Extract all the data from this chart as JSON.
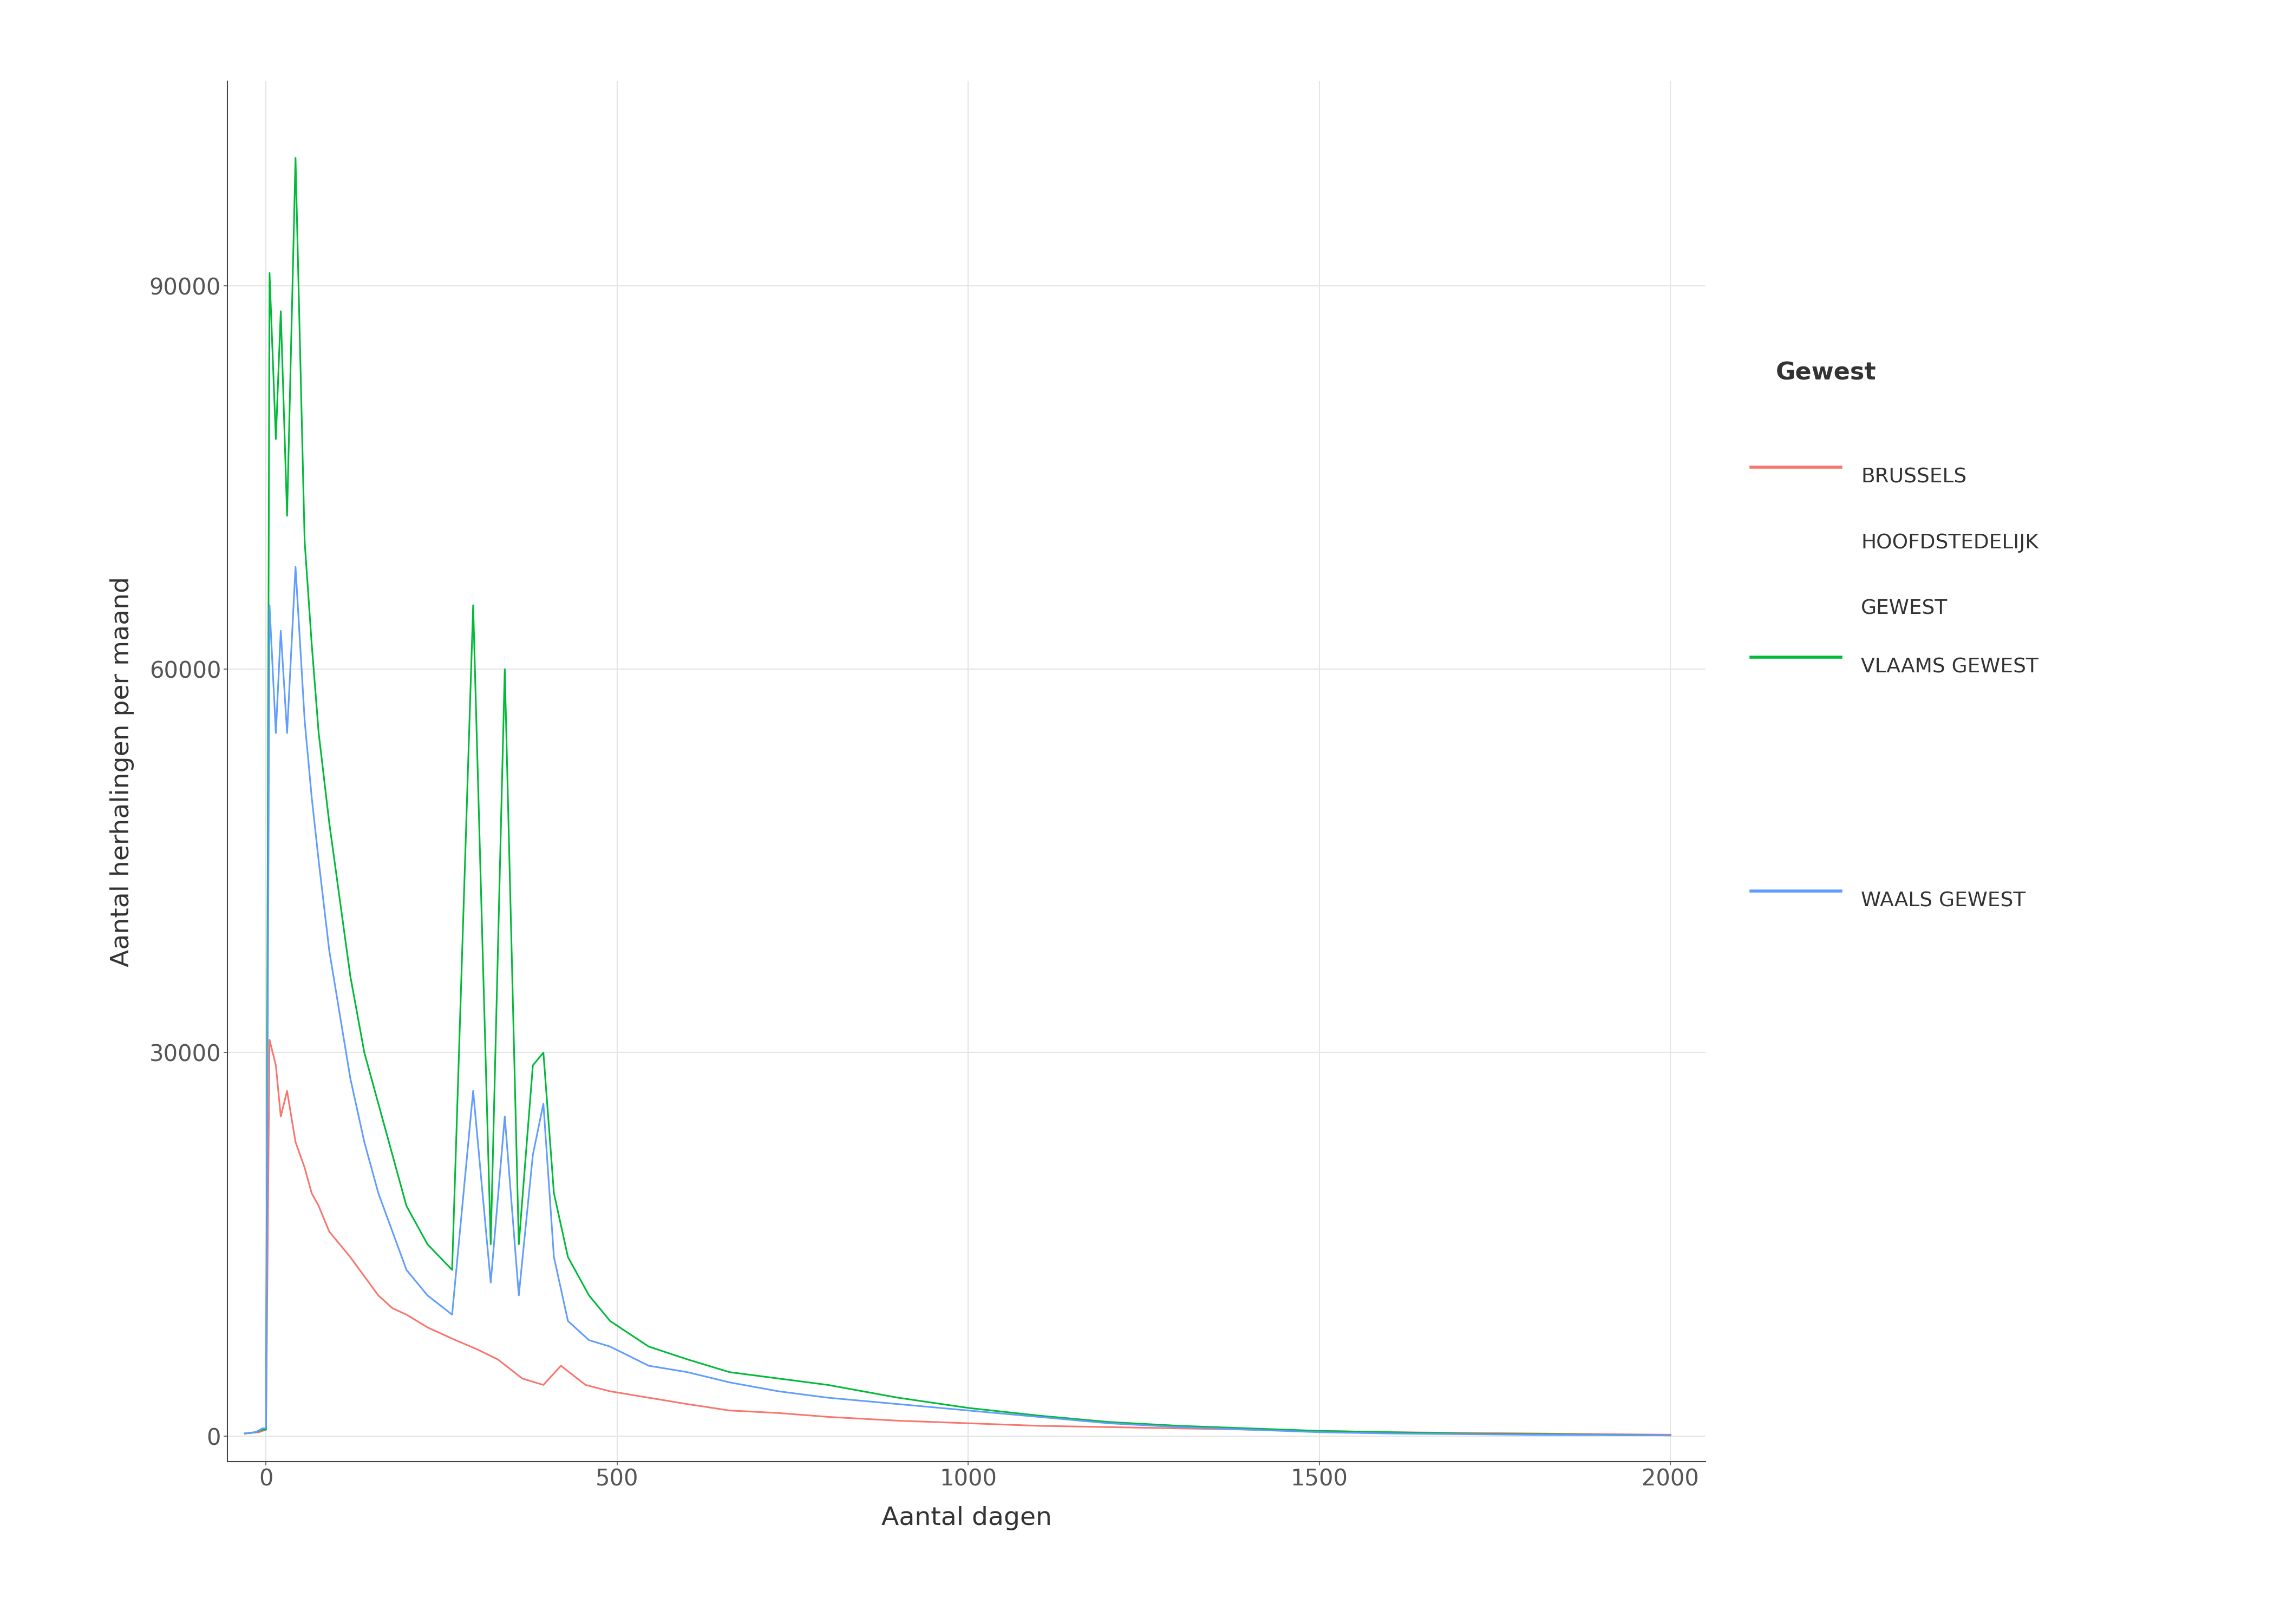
{
  "title": "",
  "xlabel": "Aantal dagen",
  "ylabel": "Aantal herhalingen per maand",
  "legend_title": "Gewest",
  "xlim": [
    -55,
    2050
  ],
  "ylim": [
    -2000,
    106000
  ],
  "xticks": [
    0,
    500,
    1000,
    1500,
    2000
  ],
  "yticks": [
    0,
    30000,
    60000,
    90000
  ],
  "background_color": "#ffffff",
  "panel_background": "#ffffff",
  "grid_color": "#e5e5e5",
  "series": {
    "brussels": {
      "label": "BRUSSELS\nHOOFDSTEDELIJK\nGEWEST",
      "color": "#F8766D",
      "x": [
        -30,
        -10,
        0,
        5,
        14,
        21,
        30,
        42,
        55,
        65,
        75,
        90,
        105,
        120,
        140,
        160,
        180,
        200,
        230,
        270,
        300,
        330,
        365,
        395,
        420,
        455,
        490,
        545,
        600,
        660,
        730,
        800,
        900,
        1000,
        1100,
        1200,
        1300,
        1400,
        1500,
        1600,
        1700,
        1800,
        1900,
        2000
      ],
      "y": [
        200,
        300,
        500,
        31000,
        29000,
        25000,
        27000,
        23000,
        21000,
        19000,
        18000,
        16000,
        15000,
        14000,
        12500,
        11000,
        10000,
        9500,
        8500,
        7500,
        6800,
        6000,
        4500,
        4000,
        5500,
        4000,
        3500,
        3000,
        2500,
        2000,
        1800,
        1500,
        1200,
        1000,
        800,
        700,
        600,
        500,
        400,
        300,
        250,
        200,
        150,
        100
      ]
    },
    "vlaams": {
      "label": "VLAAMS GEWEST",
      "color": "#00BA38",
      "x": [
        -30,
        -15,
        -5,
        0,
        5,
        14,
        21,
        30,
        42,
        55,
        65,
        75,
        90,
        105,
        120,
        140,
        160,
        180,
        200,
        230,
        265,
        295,
        320,
        340,
        360,
        380,
        395,
        410,
        430,
        460,
        490,
        545,
        600,
        660,
        730,
        800,
        900,
        1000,
        1100,
        1200,
        1300,
        1400,
        1500,
        1600,
        1700,
        1800,
        1900,
        2000
      ],
      "y": [
        200,
        300,
        500,
        500,
        91000,
        78000,
        88000,
        72000,
        100000,
        70000,
        62000,
        55000,
        48000,
        42000,
        36000,
        30000,
        26000,
        22000,
        18000,
        15000,
        13000,
        65000,
        15000,
        60000,
        15000,
        29000,
        30000,
        19000,
        14000,
        11000,
        9000,
        7000,
        6000,
        5000,
        4500,
        4000,
        3000,
        2200,
        1600,
        1100,
        800,
        600,
        400,
        300,
        200,
        150,
        100,
        50
      ]
    },
    "waals": {
      "label": "WAALS GEWEST",
      "color": "#619CFF",
      "x": [
        -30,
        -15,
        -5,
        0,
        5,
        14,
        21,
        30,
        42,
        55,
        65,
        75,
        90,
        105,
        120,
        140,
        160,
        180,
        200,
        230,
        265,
        295,
        320,
        340,
        360,
        380,
        395,
        410,
        430,
        460,
        490,
        545,
        600,
        660,
        730,
        800,
        900,
        1000,
        1100,
        1200,
        1300,
        1400,
        1500,
        1600,
        1700,
        1800,
        1900,
        2000
      ],
      "y": [
        200,
        300,
        600,
        600,
        65000,
        55000,
        63000,
        55000,
        68000,
        56000,
        50000,
        45000,
        38000,
        33000,
        28000,
        23000,
        19000,
        16000,
        13000,
        11000,
        9500,
        27000,
        12000,
        25000,
        11000,
        22000,
        26000,
        14000,
        9000,
        7500,
        7000,
        5500,
        5000,
        4200,
        3500,
        3000,
        2500,
        2000,
        1500,
        1000,
        700,
        500,
        300,
        200,
        150,
        100,
        80,
        50
      ]
    }
  },
  "legend_entries": [
    {
      "label": "BRUSSELS\nHOOFDSTEDELIJK\nGEWEST",
      "color": "#F8766D"
    },
    {
      "label": "VLAAMS GEWEST",
      "color": "#00BA38"
    },
    {
      "label": "WAALS GEWEST",
      "color": "#619CFF"
    }
  ]
}
